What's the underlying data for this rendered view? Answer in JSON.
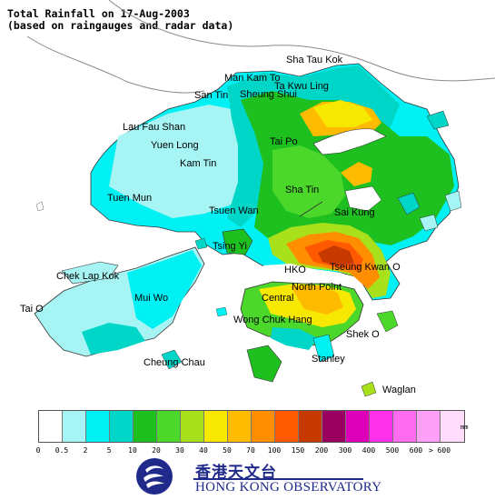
{
  "title": {
    "line1": "Total Rainfall on 17-Aug-2003",
    "line2": "(based on raingauges and radar data)"
  },
  "places": [
    {
      "name": "Sha Tau Kok",
      "id": "sha-tau-kok"
    },
    {
      "name": "Man Kam To",
      "id": "man-kam-to"
    },
    {
      "name": "Ta Kwu Ling",
      "id": "ta-kwu-ling"
    },
    {
      "name": "Sheung Shui",
      "id": "sheung-shui"
    },
    {
      "name": "San Tin",
      "id": "san-tin"
    },
    {
      "name": "Lau Fau Shan",
      "id": "lau-fau-shan"
    },
    {
      "name": "Yuen Long",
      "id": "yuen-long"
    },
    {
      "name": "Kam Tin",
      "id": "kam-tin"
    },
    {
      "name": "Tai Po",
      "id": "tai-po"
    },
    {
      "name": "Tuen Mun",
      "id": "tuen-mun"
    },
    {
      "name": "Sha Tin",
      "id": "sha-tin"
    },
    {
      "name": "Tsuen Wan",
      "id": "tsuen-wan"
    },
    {
      "name": "Sai Kung",
      "id": "sai-kung"
    },
    {
      "name": "Tsing Yi",
      "id": "tsing-yi"
    },
    {
      "name": "Chek Lap Kok",
      "id": "chek-lap-kok"
    },
    {
      "name": "HKO",
      "id": "hko"
    },
    {
      "name": "Tseung Kwan O",
      "id": "tseung-kwan-o"
    },
    {
      "name": "Mui Wo",
      "id": "mui-wo"
    },
    {
      "name": "North Point",
      "id": "north-point"
    },
    {
      "name": "Central",
      "id": "central"
    },
    {
      "name": "Tai O",
      "id": "tai-o"
    },
    {
      "name": "Wong Chuk Hang",
      "id": "wong-chuk-hang"
    },
    {
      "name": "Shek O",
      "id": "shek-o"
    },
    {
      "name": "Cheung Chau",
      "id": "cheung-chau"
    },
    {
      "name": "Stanley",
      "id": "stanley"
    },
    {
      "name": "Waglan",
      "id": "waglan"
    }
  ],
  "legend": {
    "unit": "mm",
    "colors": [
      "#ffffff",
      "#a7f4f4",
      "#00f1f4",
      "#00d6c8",
      "#1ec020",
      "#4cd82a",
      "#a8e11c",
      "#f6e800",
      "#ffbb00",
      "#ff8f00",
      "#ff5a00",
      "#c63a00",
      "#9a0060",
      "#dd00b8",
      "#ff30ea",
      "#ff6cf0",
      "#ffa0f8",
      "#ffdcfc"
    ],
    "ticks": [
      "0",
      "0.5",
      "2",
      "5",
      "10",
      "20",
      "30",
      "40",
      "50",
      "70",
      "100",
      "150",
      "200",
      "300",
      "400",
      "500",
      "600",
      "> 600"
    ]
  },
  "logo": {
    "chinese": "香港天文台",
    "english": "HONG KONG OBSERVATORY"
  }
}
